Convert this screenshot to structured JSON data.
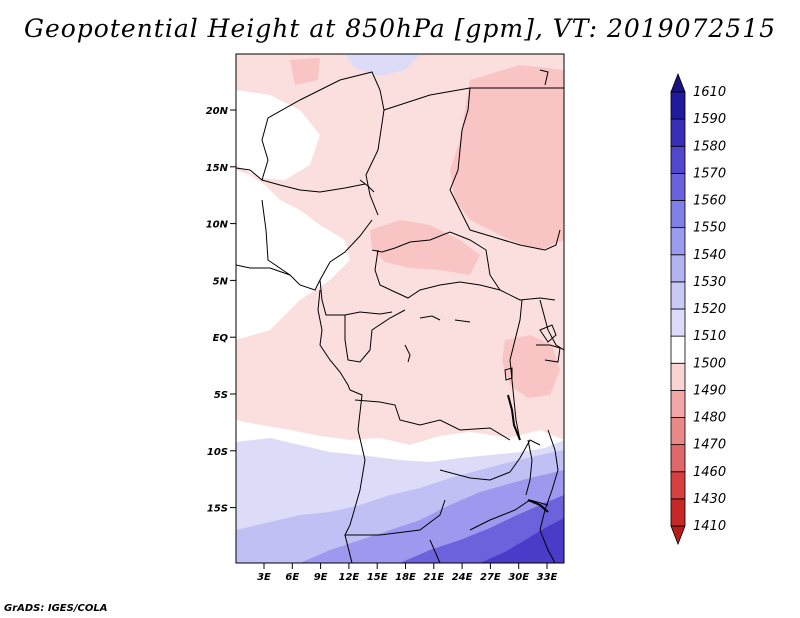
{
  "title": "Geopotential Height at 850hPa [gpm], VT: 2019072515",
  "credit": "GrADS: IGES/COLA",
  "map": {
    "lat_labels": [
      "20N",
      "15N",
      "10N",
      "5N",
      "EQ",
      "5S",
      "10S",
      "15S"
    ],
    "lon_labels": [
      "3E",
      "6E",
      "9E",
      "12E",
      "15E",
      "18E",
      "21E",
      "24E",
      "27E",
      "30E",
      "33E"
    ]
  },
  "colorbar": {
    "levels": [
      "1410",
      "1430",
      "1460",
      "1470",
      "1480",
      "1490",
      "1500",
      "1510",
      "1520",
      "1530",
      "1540",
      "1550",
      "1560",
      "1570",
      "1580",
      "1590",
      "1610"
    ],
    "colors": [
      "#b71c1c",
      "#c62828",
      "#d84040",
      "#e06868",
      "#e88888",
      "#f2a6a6",
      "#fad3d3",
      "#ffffff",
      "#dcdcfa",
      "#c9c9f5",
      "#b3b3f2",
      "#9c9cee",
      "#8080e6",
      "#6a62dc",
      "#5246cf",
      "#3a2db8",
      "#221a9e",
      "#1a1280"
    ]
  },
  "fill_colors": {
    "pink_light": "#fbdede",
    "pink_mid": "#f8c4c4",
    "lavender_light": "#dcdcf8",
    "lavender_mid": "#c0c0f4",
    "blue_mid": "#9e98ee",
    "blue_dark": "#6c62dc",
    "blue_deep": "#4a3cc8"
  }
}
